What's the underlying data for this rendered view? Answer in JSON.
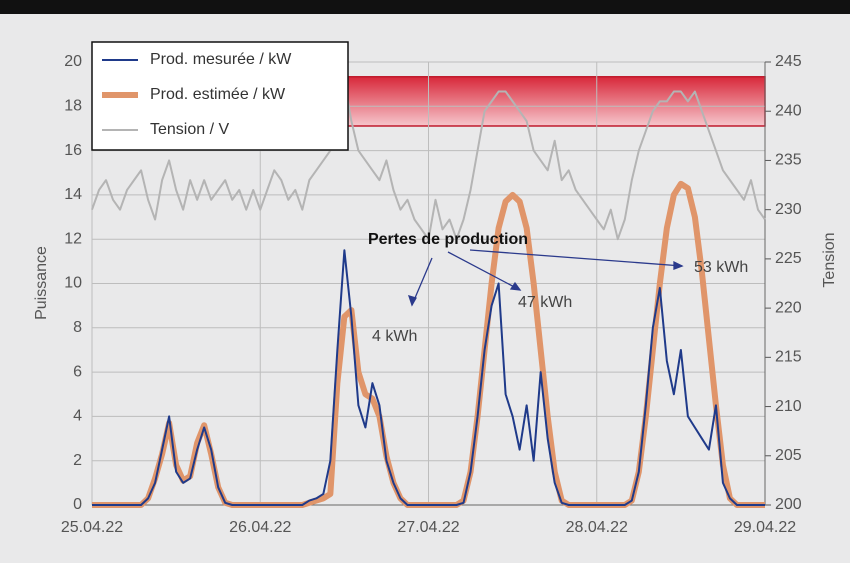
{
  "chart_data": {
    "type": "line",
    "x_label": null,
    "y_label": "Puissance",
    "y2_label": "Tension",
    "xlim": [
      0,
      96
    ],
    "xticks": [
      {
        "value": 0,
        "label": "25.04.22"
      },
      {
        "value": 24,
        "label": "26.04.22"
      },
      {
        "value": 48,
        "label": "27.04.22"
      },
      {
        "value": 72,
        "label": "28.04.22"
      },
      {
        "value": 96,
        "label": "29.04.22"
      }
    ],
    "ylim": [
      0,
      20
    ],
    "yticks": [
      0,
      2,
      4,
      6,
      8,
      10,
      12,
      14,
      16,
      18,
      20
    ],
    "y2lim": [
      200,
      245
    ],
    "y2ticks": [
      200,
      205,
      210,
      215,
      220,
      225,
      230,
      235,
      240,
      245
    ],
    "grid": true,
    "legend": "upper left",
    "x": [
      0,
      1,
      2,
      3,
      4,
      5,
      6,
      7,
      8,
      9,
      10,
      11,
      12,
      13,
      14,
      15,
      16,
      17,
      18,
      19,
      20,
      21,
      22,
      23,
      24,
      25,
      26,
      27,
      28,
      29,
      30,
      31,
      32,
      33,
      34,
      35,
      36,
      37,
      38,
      39,
      40,
      41,
      42,
      43,
      44,
      45,
      46,
      47,
      48,
      49,
      50,
      51,
      52,
      53,
      54,
      55,
      56,
      57,
      58,
      59,
      60,
      61,
      62,
      63,
      64,
      65,
      66,
      67,
      68,
      69,
      70,
      71,
      72,
      73,
      74,
      75,
      76,
      77,
      78,
      79,
      80,
      81,
      82,
      83,
      84,
      85,
      86,
      87,
      88,
      89,
      90,
      91,
      92,
      93,
      94,
      95,
      96
    ],
    "series": [
      {
        "name": "Tension / V",
        "color": "#b4b4b4",
        "axis": "y2",
        "width": 2,
        "values": [
          230,
          232,
          233,
          231,
          230,
          232,
          233,
          234,
          231,
          229,
          233,
          235,
          232,
          230,
          233,
          231,
          233,
          231,
          232,
          233,
          231,
          232,
          230,
          232,
          230,
          232,
          234,
          233,
          231,
          232,
          230,
          233,
          234,
          235,
          236,
          240,
          243,
          239,
          236,
          235,
          234,
          233,
          235,
          232,
          230,
          231,
          229,
          228,
          227,
          231,
          228,
          229,
          227,
          229,
          232,
          236,
          240,
          241,
          242,
          242,
          241,
          240,
          239,
          236,
          235,
          234,
          237,
          233,
          234,
          232,
          231,
          230,
          229,
          228,
          230,
          227,
          229,
          233,
          236,
          238,
          240,
          241,
          241,
          242,
          242,
          241,
          242,
          240,
          238,
          236,
          234,
          233,
          232,
          231,
          233,
          230,
          229
        ]
      },
      {
        "name": "Prod. estimée / kW",
        "color": "#e0956a",
        "width": 6,
        "values": [
          0,
          0,
          0,
          0,
          0,
          0,
          0,
          0,
          0.3,
          1.2,
          2.3,
          3.7,
          1.8,
          1.1,
          1.3,
          2.8,
          3.6,
          2.3,
          0.8,
          0.1,
          0,
          0,
          0,
          0,
          0,
          0,
          0,
          0,
          0,
          0,
          0,
          0.1,
          0.2,
          0.3,
          0.5,
          5.5,
          8.5,
          8.8,
          6,
          5,
          4.8,
          4,
          2.2,
          1,
          0.3,
          0,
          0,
          0,
          0,
          0,
          0,
          0,
          0,
          0.2,
          1.5,
          4,
          7,
          10,
          12.5,
          13.7,
          14,
          13.7,
          12.5,
          10,
          7,
          4,
          1.5,
          0.2,
          0,
          0,
          0,
          0,
          0,
          0,
          0,
          0,
          0,
          0.2,
          1.5,
          4,
          7,
          10,
          12.5,
          14,
          14.5,
          14.3,
          13,
          10.5,
          7.5,
          4.5,
          1.8,
          0.3,
          0,
          0,
          0,
          0,
          0
        ]
      },
      {
        "name": "Prod. mesurée / kW",
        "color": "#1f3a8a",
        "width": 2,
        "values": [
          0,
          0,
          0,
          0,
          0,
          0,
          0,
          0,
          0.3,
          1.0,
          2.5,
          4.0,
          1.5,
          1.0,
          1.2,
          2.5,
          3.5,
          2.5,
          0.8,
          0.1,
          0,
          0,
          0,
          0,
          0,
          0,
          0,
          0,
          0,
          0,
          0,
          0.2,
          0.3,
          0.5,
          2,
          7,
          11.5,
          8.5,
          4.5,
          3.5,
          5.5,
          4.5,
          2,
          1,
          0.3,
          0,
          0,
          0,
          0,
          0,
          0,
          0,
          0,
          0.1,
          1.5,
          4,
          7,
          9,
          10,
          5,
          4,
          2.5,
          4.5,
          2,
          6,
          3,
          1,
          0.1,
          0,
          0,
          0,
          0,
          0,
          0,
          0,
          0,
          0,
          0.2,
          1.5,
          4.5,
          8,
          9.8,
          6.5,
          5,
          7,
          4,
          3.5,
          3,
          2.5,
          4.5,
          1,
          0.3,
          0,
          0,
          0,
          0,
          0
        ]
      }
    ],
    "legend_order": [
      2,
      1,
      0
    ],
    "shaded_band": {
      "x": [
        36,
        96
      ],
      "y2": [
        238.5,
        243.5
      ]
    },
    "annotations": [
      "Pertes de production",
      "4 kWh",
      "47 kWh",
      "53 kWh"
    ]
  }
}
